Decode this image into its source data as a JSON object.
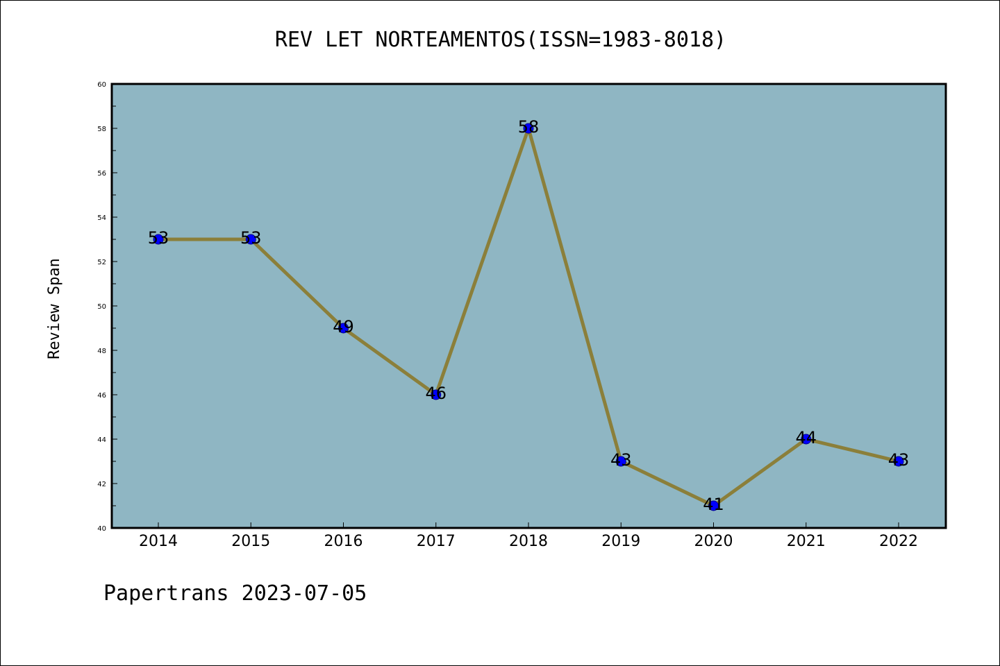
{
  "chart_data": {
    "type": "line",
    "title": "REV LET NORTEAMENTOS(ISSN=1983-8018)",
    "xlabel": "",
    "ylabel": "Review Span",
    "categories": [
      "2014",
      "2015",
      "2016",
      "2017",
      "2018",
      "2019",
      "2020",
      "2021",
      "2022"
    ],
    "values": [
      53,
      53,
      49,
      46,
      58,
      43,
      41,
      44,
      43
    ],
    "data_labels": [
      "53",
      "53",
      "49",
      "46",
      "58",
      "43",
      "41",
      "44",
      "43"
    ],
    "ylim": [
      40,
      60
    ],
    "yticks": [
      "40",
      "42",
      "44",
      "46",
      "48",
      "50",
      "52",
      "54",
      "56",
      "58",
      "60"
    ],
    "grid": false,
    "legend": "none",
    "colors": {
      "plot_background": "#8fb6c3",
      "line": "#8b7f3a",
      "marker": "#0000ff",
      "axis": "#000000"
    }
  },
  "footer": "Papertrans 2023-07-05"
}
